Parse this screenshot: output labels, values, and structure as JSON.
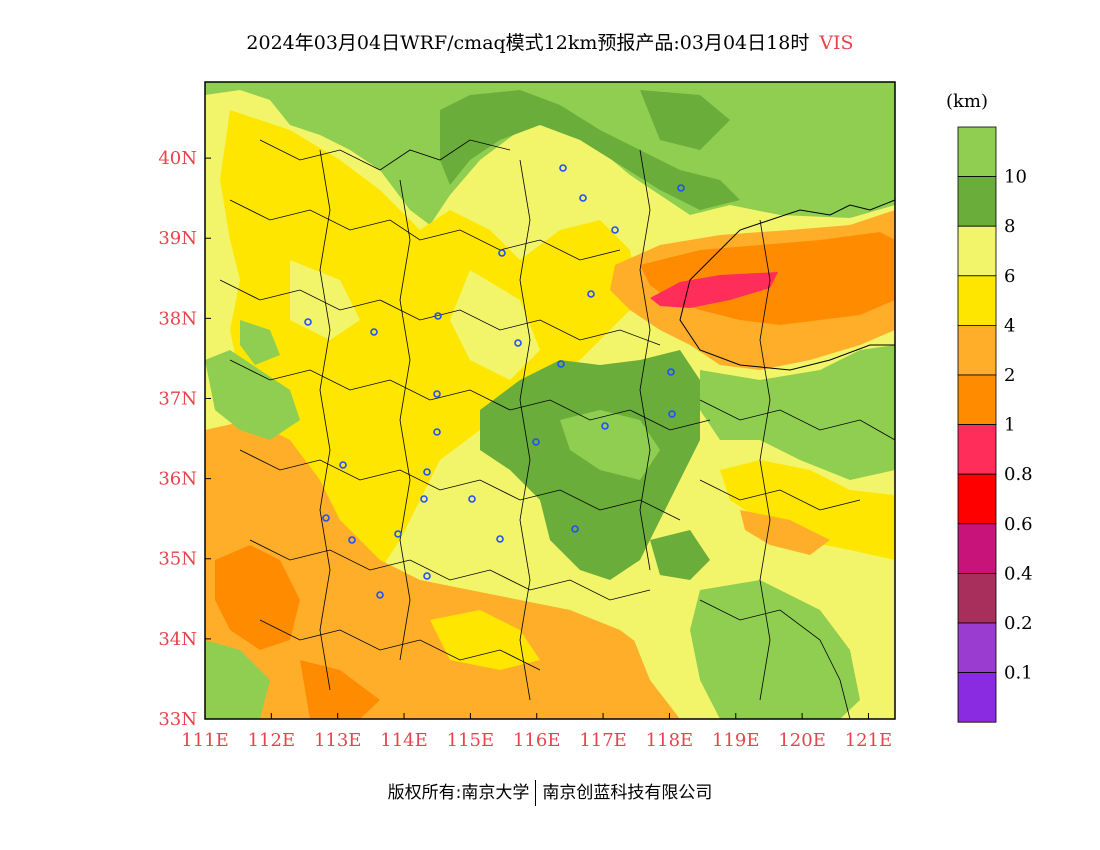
{
  "header": {
    "title": "2024年03月04日WRF/cmaq模式12km预报产品:03月04日18时",
    "variable": "VIS"
  },
  "map": {
    "lon_range": [
      111,
      121.4
    ],
    "lat_range": [
      33,
      40.95
    ],
    "x_ticks": [
      "111E",
      "112E",
      "113E",
      "114E",
      "115E",
      "116E",
      "117E",
      "118E",
      "119E",
      "120E",
      "121E"
    ],
    "y_ticks": [
      "33N",
      "34N",
      "35N",
      "36N",
      "37N",
      "38N",
      "39N",
      "40N"
    ]
  },
  "legend": {
    "unit": "(km)",
    "levels": [
      {
        "label": "10",
        "color": "#8fce50"
      },
      {
        "label": "8",
        "color": "#6aad3a"
      },
      {
        "label": "6",
        "color": "#f2f56a"
      },
      {
        "label": "4",
        "color": "#ffe600"
      },
      {
        "label": "2",
        "color": "#ffae2a"
      },
      {
        "label": "1",
        "color": "#ff8c00"
      },
      {
        "label": "0.8",
        "color": "#ff2d5a"
      },
      {
        "label": "0.6",
        "color": "#ff0000"
      },
      {
        "label": "0.4",
        "color": "#c8147a"
      },
      {
        "label": "0.2",
        "color": "#a82e5c"
      },
      {
        "label": "0.1",
        "color": "#9a3cd0"
      },
      {
        "label": "",
        "color": "#8a2be2"
      }
    ]
  },
  "footer": {
    "copyright": "版权所有:南京大学",
    "company": "南京创蓝科技有限公司"
  }
}
